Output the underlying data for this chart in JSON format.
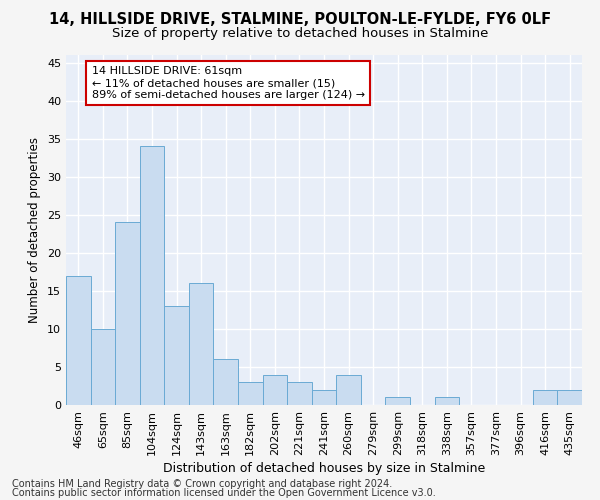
{
  "title1": "14, HILLSIDE DRIVE, STALMINE, POULTON-LE-FYLDE, FY6 0LF",
  "title2": "Size of property relative to detached houses in Stalmine",
  "xlabel": "Distribution of detached houses by size in Stalmine",
  "ylabel": "Number of detached properties",
  "categories": [
    "46sqm",
    "65sqm",
    "85sqm",
    "104sqm",
    "124sqm",
    "143sqm",
    "163sqm",
    "182sqm",
    "202sqm",
    "221sqm",
    "241sqm",
    "260sqm",
    "279sqm",
    "299sqm",
    "318sqm",
    "338sqm",
    "357sqm",
    "377sqm",
    "396sqm",
    "416sqm",
    "435sqm"
  ],
  "values": [
    17,
    10,
    24,
    34,
    13,
    16,
    6,
    3,
    4,
    3,
    2,
    4,
    0,
    1,
    0,
    1,
    0,
    0,
    0,
    2,
    2
  ],
  "bar_color": "#c9dcf0",
  "bar_edge_color": "#6aaad4",
  "annotation_box_text": "14 HILLSIDE DRIVE: 61sqm\n← 11% of detached houses are smaller (15)\n89% of semi-detached houses are larger (124) →",
  "annotation_box_facecolor": "#ffffff",
  "annotation_box_edgecolor": "#cc0000",
  "ylim": [
    0,
    46
  ],
  "yticks": [
    0,
    5,
    10,
    15,
    20,
    25,
    30,
    35,
    40,
    45
  ],
  "bg_color": "#e8eef8",
  "grid_color": "#ffffff",
  "footer1": "Contains HM Land Registry data © Crown copyright and database right 2024.",
  "footer2": "Contains public sector information licensed under the Open Government Licence v3.0.",
  "title1_fontsize": 10.5,
  "title2_fontsize": 9.5,
  "xlabel_fontsize": 9,
  "ylabel_fontsize": 8.5,
  "tick_fontsize": 8,
  "ann_fontsize": 8,
  "footer_fontsize": 7
}
